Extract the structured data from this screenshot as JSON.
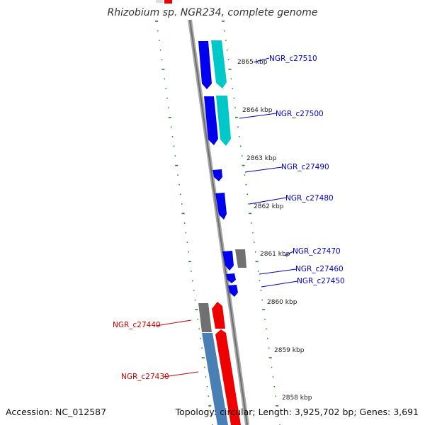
{
  "title": "Rhizobium sp. NGR234, complete genome",
  "footer": {
    "accession": "Accession: NC_012587",
    "topology": "Topology: circular; Length: 3,925,702 bp; Genes: 3,691"
  },
  "colors": {
    "forward_gene": "#0000ee",
    "forward_gene_alt": "#00c8c8",
    "reverse_gene": "#ee0000",
    "reverse_gene_alt": "#4a7fb5",
    "other_gene": "#707070",
    "backbone": "#8c8c8c",
    "ticks": "#1f8a1f",
    "label_forward": "#0000cc",
    "label_reverse": "#cc0000"
  },
  "scale": {
    "unit": "kbp",
    "tick_labels": [
      "2865 kbp",
      "2864 kbp",
      "2863 kbp",
      "2862 kbp",
      "2861 kbp",
      "2860 kbp",
      "2859 kbp",
      "2858 kbp"
    ]
  },
  "genes": {
    "forward": [
      "NGR_c27510",
      "NGR_c27500",
      "NGR_c27490",
      "NGR_c27480",
      "NGR_c27470",
      "NGR_c27460",
      "NGR_c27450"
    ],
    "reverse": [
      "NGR_c27440",
      "NGR_c27430"
    ]
  }
}
